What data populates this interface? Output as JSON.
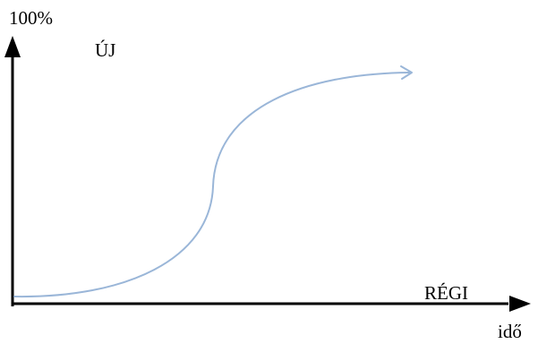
{
  "labels": {
    "y_top": "100%",
    "new": "ÚJ",
    "old": "RÉGI",
    "time": "idő"
  },
  "colors": {
    "axis": "#000000",
    "curve": "#9ab6d8",
    "background": "#ffffff"
  },
  "shape": {
    "curve": "s-curve",
    "curve_end": "arrow"
  }
}
